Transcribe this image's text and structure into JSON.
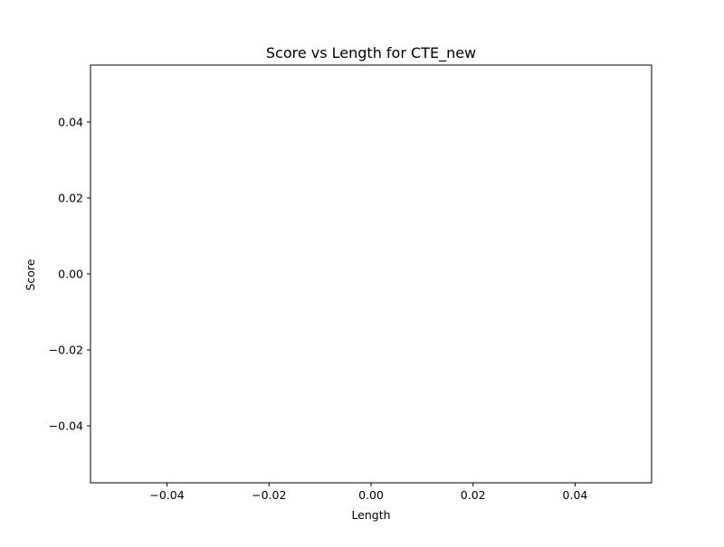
{
  "chart_data": {
    "type": "scatter",
    "title": "Score vs Length for CTE_new",
    "xlabel": "Length",
    "ylabel": "Score",
    "xlim": [
      -0.055,
      0.055
    ],
    "ylim": [
      -0.055,
      0.055
    ],
    "xticks": [
      -0.04,
      -0.02,
      0.0,
      0.02,
      0.04
    ],
    "xtick_labels": [
      "−0.04",
      "−0.02",
      "0.00",
      "0.02",
      "0.04"
    ],
    "yticks": [
      -0.04,
      -0.02,
      0.0,
      0.02,
      0.04
    ],
    "ytick_labels": [
      "−0.04",
      "−0.02",
      "0.00",
      "0.02",
      "0.04"
    ],
    "grid": false,
    "series": [
      {
        "x": [],
        "y": []
      }
    ]
  }
}
